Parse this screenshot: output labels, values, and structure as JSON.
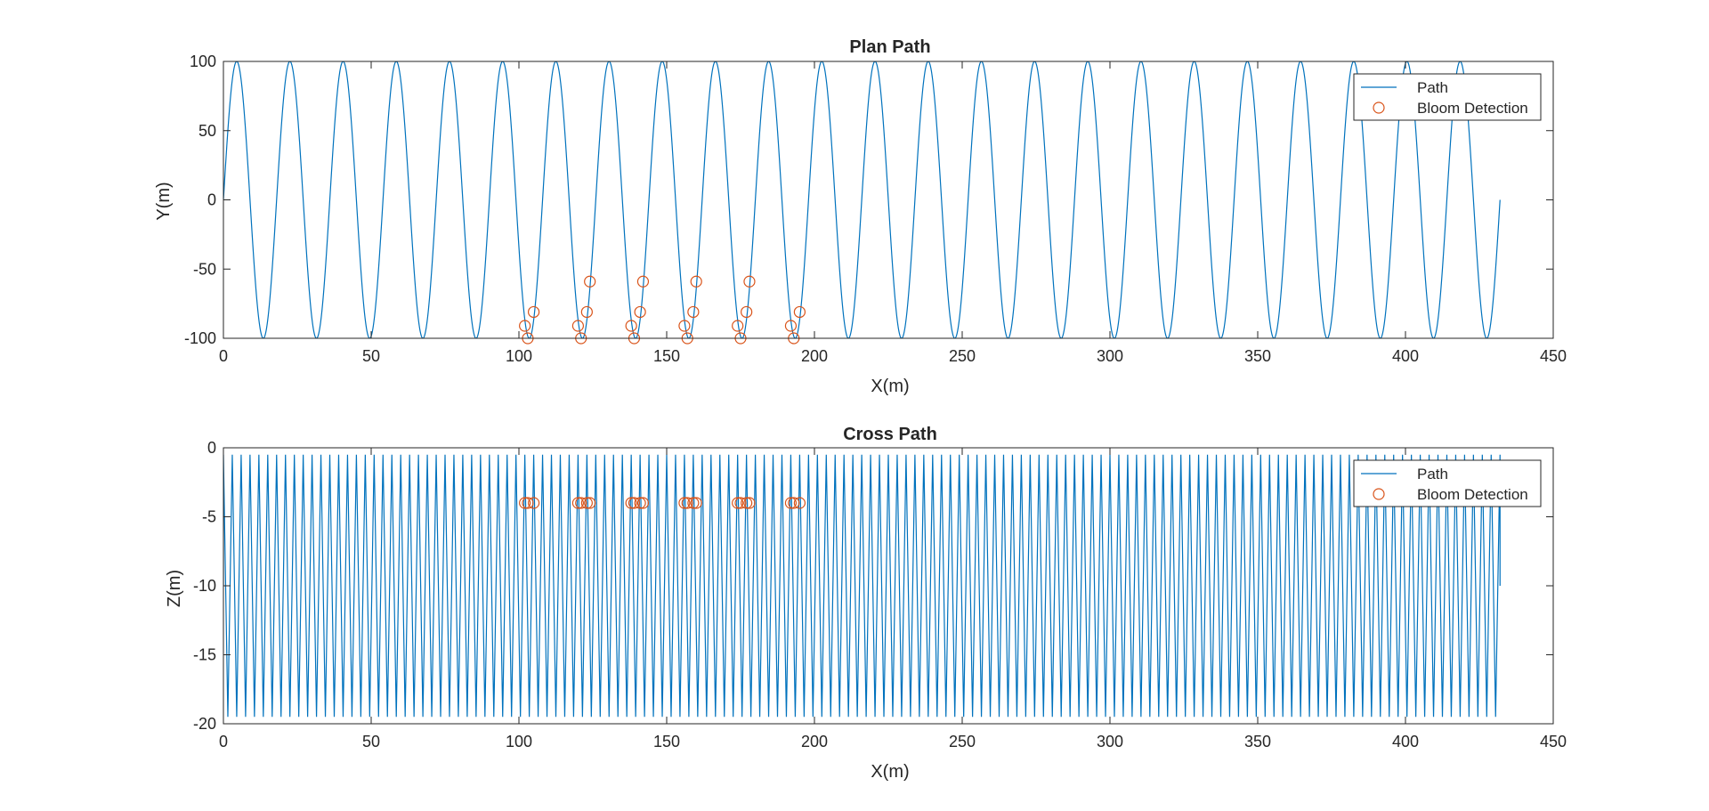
{
  "colors": {
    "path": "#0072BD",
    "bloom": "#D95319",
    "axis": "#262626",
    "background": "#ffffff"
  },
  "chart_data": [
    {
      "type": "line",
      "title": "Plan Path",
      "xlabel": "X(m)",
      "ylabel": "Y(m)",
      "xlim": [
        0,
        450
      ],
      "ylim": [
        -100,
        100
      ],
      "xticks": [
        0,
        50,
        100,
        150,
        200,
        250,
        300,
        350,
        400,
        450
      ],
      "yticks": [
        -100,
        -50,
        0,
        50,
        100
      ],
      "grid": false,
      "legend": {
        "placement": "top-right",
        "entries": [
          "Path",
          "Bloom Detection"
        ]
      },
      "series": [
        {
          "name": "Path",
          "style": "line",
          "x_start": 0,
          "x_end": 432,
          "amplitude": 100,
          "period": 18,
          "cycles": 24
        },
        {
          "name": "Bloom Detection",
          "style": "circle-marker",
          "x": [
            102,
            103,
            105,
            120,
            121,
            123,
            124,
            138,
            139,
            141,
            142,
            156,
            157,
            159,
            160,
            174,
            175,
            177,
            178,
            192,
            193,
            195
          ],
          "y": [
            -91,
            -100,
            -81,
            -91,
            -100,
            -81,
            -59,
            -91,
            -100,
            -81,
            -59,
            -91,
            -100,
            -81,
            -59,
            -91,
            -100,
            -81,
            -59,
            -91,
            -100,
            -81
          ]
        }
      ]
    },
    {
      "type": "line",
      "title": "Cross Path",
      "xlabel": "X(m)",
      "ylabel": "Z(m)",
      "xlim": [
        0,
        450
      ],
      "ylim": [
        -20,
        0
      ],
      "xticks": [
        0,
        50,
        100,
        150,
        200,
        250,
        300,
        350,
        400,
        450
      ],
      "yticks": [
        -20,
        -15,
        -10,
        -5,
        0
      ],
      "grid": false,
      "legend": {
        "placement": "top-right",
        "entries": [
          "Path",
          "Bloom Detection"
        ]
      },
      "series": [
        {
          "name": "Path",
          "style": "line",
          "x_start": 0,
          "x_end": 432,
          "z_start": -10,
          "z_min": -19.5,
          "z_max": -0.5,
          "period": 3,
          "cycles": 144
        },
        {
          "name": "Bloom Detection",
          "style": "circle-marker",
          "x": [
            102,
            103,
            105,
            120,
            121,
            123,
            124,
            138,
            139,
            141,
            142,
            156,
            157,
            159,
            160,
            174,
            175,
            177,
            178,
            192,
            193,
            195
          ],
          "y": [
            -4,
            -4,
            -4,
            -4,
            -4,
            -4,
            -4,
            -4,
            -4,
            -4,
            -4,
            -4,
            -4,
            -4,
            -4,
            -4,
            -4,
            -4,
            -4,
            -4,
            -4,
            -4
          ]
        }
      ]
    }
  ]
}
